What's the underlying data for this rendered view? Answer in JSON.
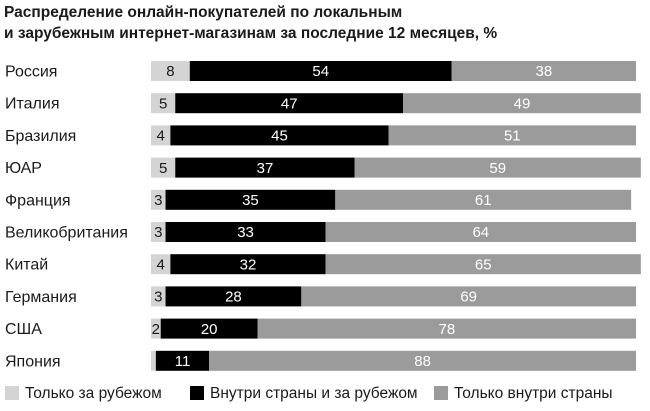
{
  "chart_data": {
    "type": "bar",
    "stacked": true,
    "orientation": "horizontal",
    "title": "Распределение онлайн-покупателей по локальным и зарубежным интернет-магазинам за последние 12 месяцев, %",
    "title_lines": [
      "Распределение онлайн-покупателей по локальным",
      "и зарубежным интернет-магазинам за последние 12 месяцев, %"
    ],
    "categories": [
      "Россия",
      "Италия",
      "Бразилия",
      "ЮАР",
      "Франция",
      "Великобритания",
      "Китай",
      "Германия",
      "США",
      "Япония"
    ],
    "series": [
      {
        "name": "Только за рубежом",
        "color": "#d4d4d4",
        "text_color": "#1a1a1a",
        "values": [
          8,
          5,
          4,
          5,
          3,
          3,
          4,
          3,
          2,
          1
        ]
      },
      {
        "name": "Внутри страны и за рубежом",
        "color": "#000000",
        "text_color": "#ffffff",
        "values": [
          54,
          47,
          45,
          37,
          35,
          33,
          32,
          28,
          20,
          11
        ]
      },
      {
        "name": "Только внутри страны",
        "color": "#9b9b9b",
        "text_color": "#ffffff",
        "values": [
          38,
          49,
          51,
          59,
          61,
          64,
          65,
          69,
          78,
          88
        ]
      }
    ],
    "value_labels": [
      [
        "8",
        "54",
        "38"
      ],
      [
        "5",
        "47",
        "49"
      ],
      [
        "4",
        "45",
        "51"
      ],
      [
        "5",
        "37",
        "59"
      ],
      [
        "3",
        "35",
        "61"
      ],
      [
        "3",
        "33",
        "64"
      ],
      [
        "4",
        "32",
        "65"
      ],
      [
        "3",
        "28",
        "69"
      ],
      [
        "2",
        "20",
        "78"
      ],
      [
        "",
        "11",
        "88"
      ]
    ],
    "xlim": [
      0,
      100
    ],
    "xlabel": "",
    "ylabel": "",
    "grid": false,
    "legend_position": "bottom"
  }
}
